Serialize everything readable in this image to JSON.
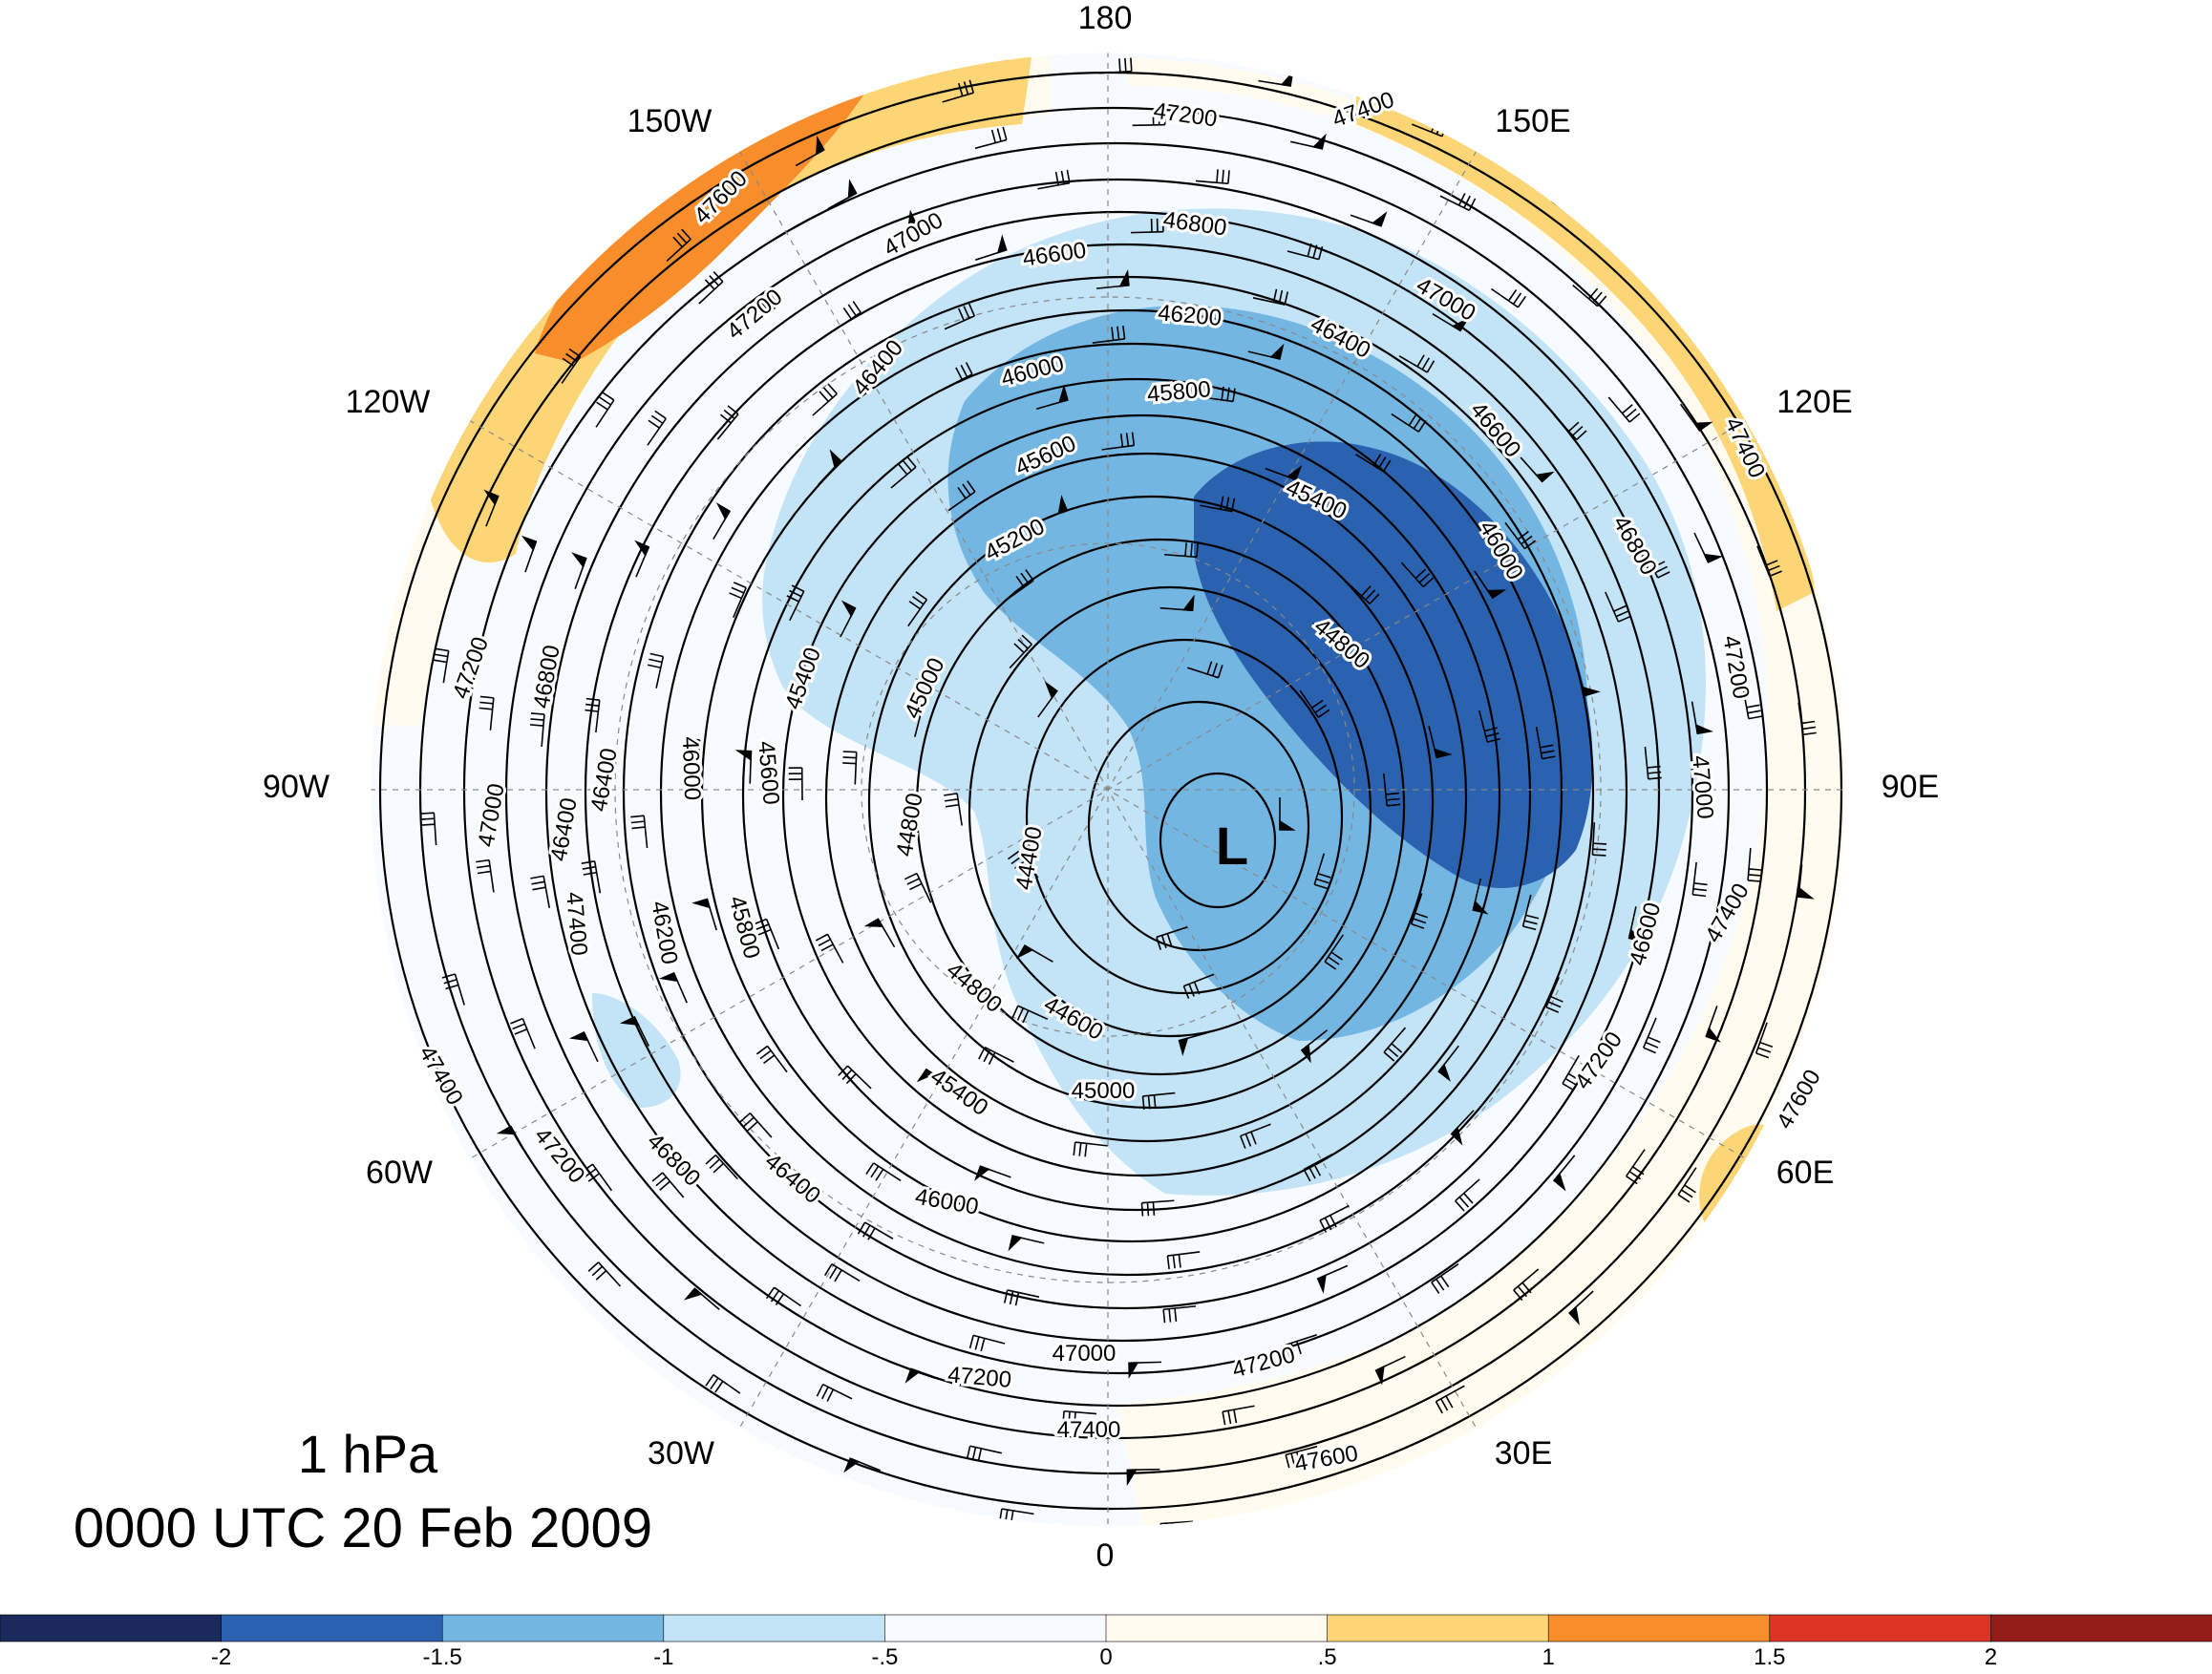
{
  "title": {
    "level": "1 hPa",
    "datetime": "0000 UTC 20 Feb 2009"
  },
  "longitude_labels": [
    "180",
    "150E",
    "120E",
    "90E",
    "60E",
    "30E",
    "0",
    "30W",
    "60W",
    "90W",
    "120W",
    "150W"
  ],
  "low_marker": "L",
  "contour_labels": [
    "47200",
    "47400",
    "47600",
    "47000",
    "47200",
    "46800",
    "46600",
    "47000",
    "46400",
    "46200",
    "46400",
    "46000",
    "45800",
    "45600",
    "45400",
    "45200",
    "46600",
    "46800",
    "47400",
    "46000",
    "44800",
    "47200",
    "45400",
    "45000",
    "47000",
    "46000",
    "45600",
    "44800",
    "44400",
    "46200",
    "45800",
    "46400",
    "46800",
    "47200",
    "47000",
    "46400",
    "47400",
    "44800",
    "44600",
    "45400",
    "45000",
    "46000",
    "46800",
    "46400",
    "47200",
    "47400",
    "47000",
    "47200",
    "47600",
    "47200",
    "47400",
    "47600",
    "46600",
    "47400",
    "47200"
  ],
  "colorbar": {
    "colors": [
      "#1a2a5c",
      "#2b62b0",
      "#74b6e2",
      "#c3e3f6",
      "#f7fbff",
      "#fffbef",
      "#fcd676",
      "#f88d2c",
      "#de3426",
      "#931c19"
    ],
    "ticks": [
      "-2",
      "-1.5",
      "-1",
      "-.5",
      "0",
      ".5",
      "1",
      "1.5",
      "2"
    ]
  },
  "colors": {
    "strong_negative": "#2b62b0",
    "negative": "#74b6e2",
    "weak_negative": "#c3e3f6",
    "near_zero": "#f7fbff",
    "weak_positive": "#fffbef",
    "positive": "#fcd676",
    "strong_positive": "#f88d2c"
  }
}
